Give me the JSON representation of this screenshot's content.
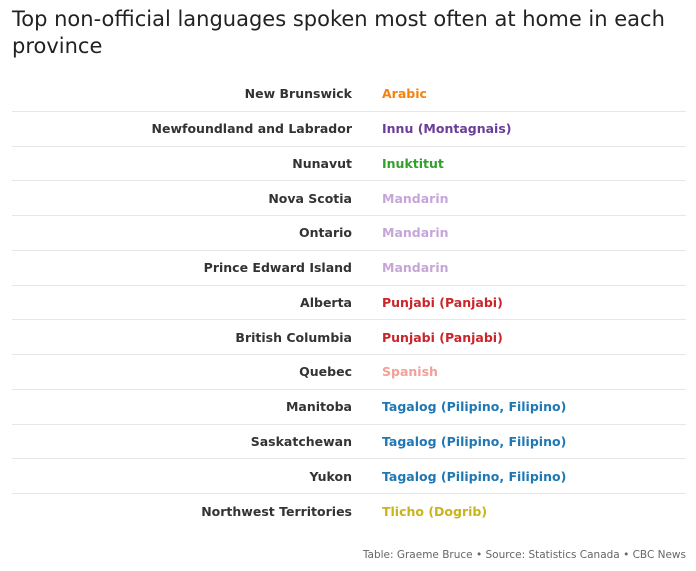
{
  "title": "Top non-official languages spoken most often at home in each province",
  "table": {
    "rows": [
      {
        "province": "New Brunswick",
        "language": "Arabic",
        "color": "#f5820b"
      },
      {
        "province": "Newfoundland and Labrador",
        "language": "Innu (Montagnais)",
        "color": "#6a3d9a"
      },
      {
        "province": "Nunavut",
        "language": "Inuktitut",
        "color": "#33a02c"
      },
      {
        "province": "Nova Scotia",
        "language": "Mandarin",
        "color": "#c6a6d8"
      },
      {
        "province": "Ontario",
        "language": "Mandarin",
        "color": "#c6a6d8"
      },
      {
        "province": "Prince Edward Island",
        "language": "Mandarin",
        "color": "#c6a6d8"
      },
      {
        "province": "Alberta",
        "language": "Punjabi (Panjabi)",
        "color": "#c8262b"
      },
      {
        "province": "British Columbia",
        "language": "Punjabi (Panjabi)",
        "color": "#c8262b"
      },
      {
        "province": "Quebec",
        "language": "Spanish",
        "color": "#f3a097"
      },
      {
        "province": "Manitoba",
        "language": "Tagalog (Pilipino, Filipino)",
        "color": "#1f78b4"
      },
      {
        "province": "Saskatchewan",
        "language": "Tagalog (Pilipino, Filipino)",
        "color": "#1f78b4"
      },
      {
        "province": "Yukon",
        "language": "Tagalog (Pilipino, Filipino)",
        "color": "#1f78b4"
      },
      {
        "province": "Northwest Territories",
        "language": "Tlicho (Dogrib)",
        "color": "#c9b41c"
      }
    ]
  },
  "footer": "Table: Graeme Bruce • Source: Statistics Canada • CBC News"
}
